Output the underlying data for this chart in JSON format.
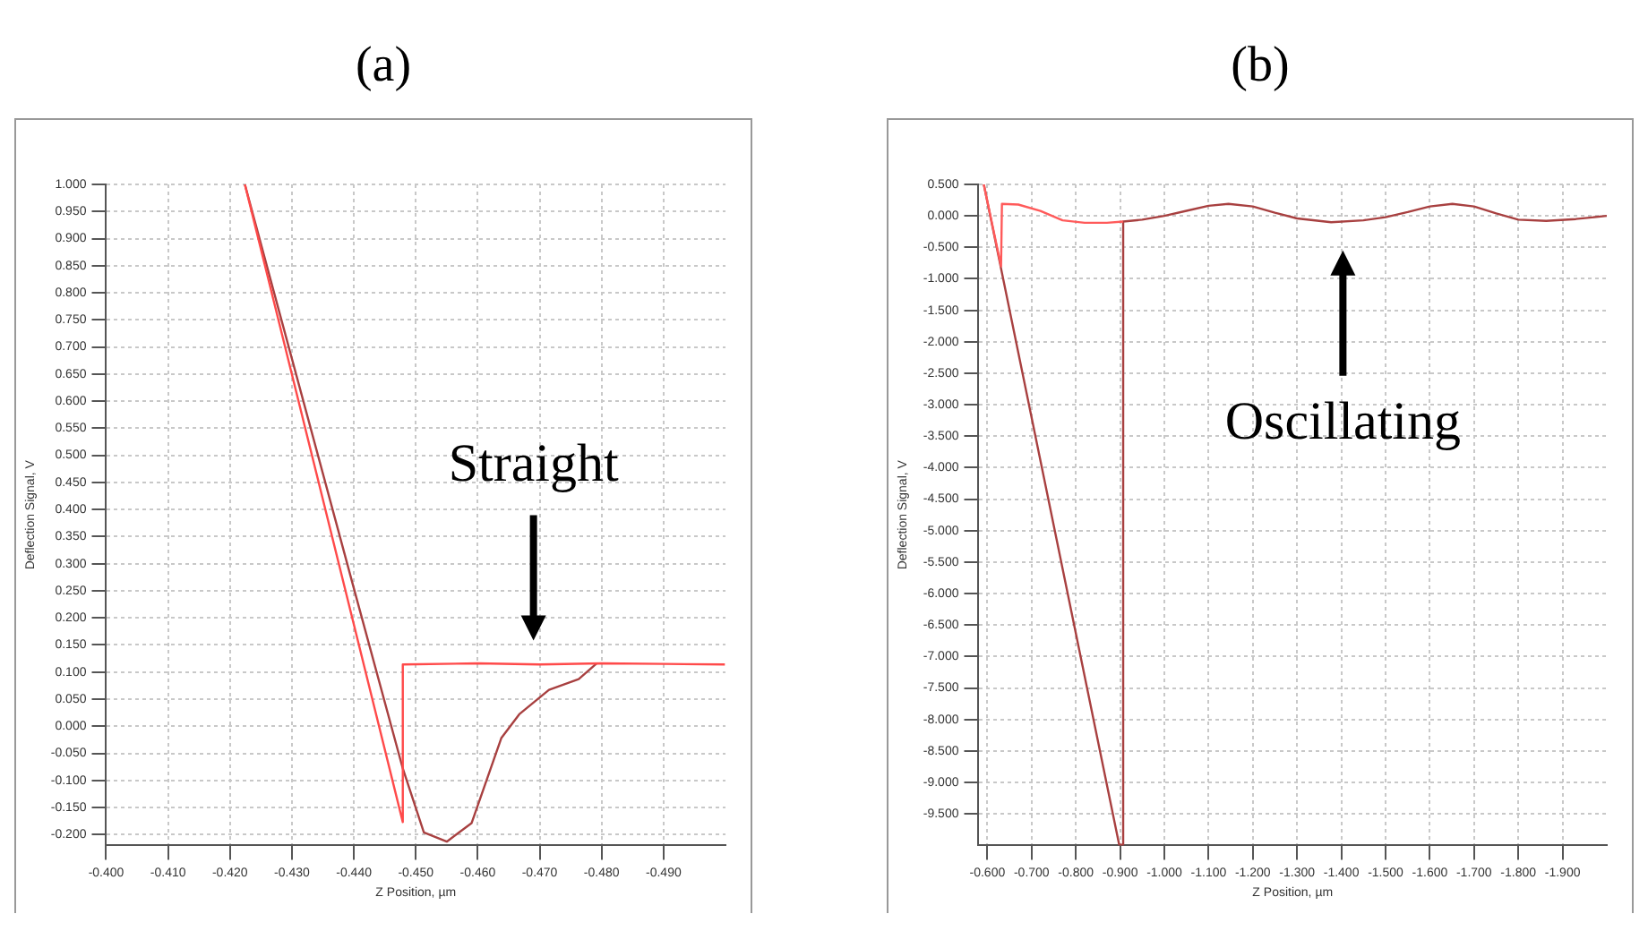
{
  "chart_data": [
    {
      "type": "line",
      "title": "(a)",
      "xlabel": "Z Position, µm",
      "ylabel": "Deflection Signal, V",
      "xlim": [
        -0.4,
        -0.5
      ],
      "xticks": [
        {
          "value": -0.4,
          "label": "-0.400"
        },
        {
          "value": -0.41,
          "label": "-0.410"
        },
        {
          "value": -0.42,
          "label": "-0.420"
        },
        {
          "value": -0.43,
          "label": "-0.430"
        },
        {
          "value": -0.44,
          "label": "-0.440"
        },
        {
          "value": -0.45,
          "label": "-0.450"
        },
        {
          "value": -0.46,
          "label": "-0.460"
        },
        {
          "value": -0.47,
          "label": "-0.470"
        },
        {
          "value": -0.48,
          "label": "-0.480"
        },
        {
          "value": -0.49,
          "label": "-0.490"
        }
      ],
      "ylim": [
        -0.22,
        1.0
      ],
      "yticks": [
        {
          "value": 1.0,
          "label": "1.000"
        },
        {
          "value": 0.95,
          "label": "0.950"
        },
        {
          "value": 0.9,
          "label": "0.900"
        },
        {
          "value": 0.85,
          "label": "0.850"
        },
        {
          "value": 0.8,
          "label": "0.800"
        },
        {
          "value": 0.75,
          "label": "0.750"
        },
        {
          "value": 0.7,
          "label": "0.700"
        },
        {
          "value": 0.65,
          "label": "0.650"
        },
        {
          "value": 0.6,
          "label": "0.600"
        },
        {
          "value": 0.55,
          "label": "0.550"
        },
        {
          "value": 0.5,
          "label": "0.500"
        },
        {
          "value": 0.45,
          "label": "0.450"
        },
        {
          "value": 0.4,
          "label": "0.400"
        },
        {
          "value": 0.35,
          "label": "0.350"
        },
        {
          "value": 0.3,
          "label": "0.300"
        },
        {
          "value": 0.25,
          "label": "0.250"
        },
        {
          "value": 0.2,
          "label": "0.200"
        },
        {
          "value": 0.15,
          "label": "0.150"
        },
        {
          "value": 0.1,
          "label": "0.100"
        },
        {
          "value": 0.05,
          "label": "0.050"
        },
        {
          "value": 0,
          "label": "0.000"
        },
        {
          "value": -0.05,
          "label": "-0.050"
        },
        {
          "value": -0.1,
          "label": "-0.100"
        },
        {
          "value": -0.15,
          "label": "-0.150"
        },
        {
          "value": -0.2,
          "label": "-0.200"
        }
      ],
      "grid": true,
      "series": [
        {
          "color": "#ff4a4a",
          "x": [
            -0.4224,
            -0.4479,
            -0.4479,
            -0.46,
            -0.47,
            -0.48,
            -0.49,
            -0.4999
          ],
          "values": [
            1.0,
            -0.177,
            0.114,
            0.116,
            0.114,
            0.116,
            0.115,
            0.114
          ]
        },
        {
          "color": "#a84040",
          "x": [
            -0.4224,
            -0.4402,
            -0.4479,
            -0.4513,
            -0.455,
            -0.459,
            -0.4638,
            -0.4667,
            -0.4715,
            -0.4763,
            -0.4782,
            -0.4792
          ],
          "values": [
            1.0,
            0.246,
            -0.078,
            -0.196,
            -0.213,
            -0.179,
            -0.022,
            0.022,
            0.067,
            0.087,
            0.106,
            0.116
          ]
        }
      ],
      "annotations": [
        "Straight"
      ]
    },
    {
      "type": "line",
      "title": "(b)",
      "xlabel": "Z Position, µm",
      "ylabel": "Deflection Signal, V",
      "xlim": [
        -0.58,
        -2.0
      ],
      "xticks": [
        {
          "value": -0.6,
          "label": "-0.600"
        },
        {
          "value": -0.7,
          "label": "-0.700"
        },
        {
          "value": -0.8,
          "label": "-0.800"
        },
        {
          "value": -0.9,
          "label": "-0.900"
        },
        {
          "value": -1.0,
          "label": "-1.000"
        },
        {
          "value": -1.1,
          "label": "-1.100"
        },
        {
          "value": -1.2,
          "label": "-1.200"
        },
        {
          "value": -1.3,
          "label": "-1.300"
        },
        {
          "value": -1.4,
          "label": "-1.400"
        },
        {
          "value": -1.5,
          "label": "-1.500"
        },
        {
          "value": -1.6,
          "label": "-1.600"
        },
        {
          "value": -1.7,
          "label": "-1.700"
        },
        {
          "value": -1.8,
          "label": "-1.800"
        },
        {
          "value": -1.9,
          "label": "-1.900"
        }
      ],
      "ylim": [
        -10.0,
        0.5
      ],
      "yticks": [
        {
          "value": 0.5,
          "label": "0.500"
        },
        {
          "value": 0,
          "label": "0.000"
        },
        {
          "value": -0.5,
          "label": "-0.500"
        },
        {
          "value": -1,
          "label": "-1.000"
        },
        {
          "value": -1.5,
          "label": "-1.500"
        },
        {
          "value": -2,
          "label": "-2.000"
        },
        {
          "value": -2.5,
          "label": "-2.500"
        },
        {
          "value": -3,
          "label": "-3.000"
        },
        {
          "value": -3.5,
          "label": "-3.500"
        },
        {
          "value": -4,
          "label": "-4.000"
        },
        {
          "value": -4.5,
          "label": "-4.500"
        },
        {
          "value": -5,
          "label": "-5.000"
        },
        {
          "value": -5.5,
          "label": "-5.500"
        },
        {
          "value": -6,
          "label": "-6.000"
        },
        {
          "value": -6.5,
          "label": "-6.500"
        },
        {
          "value": -7,
          "label": "-7.000"
        },
        {
          "value": -7.5,
          "label": "-7.500"
        },
        {
          "value": -8,
          "label": "-8.000"
        },
        {
          "value": -8.5,
          "label": "-8.500"
        },
        {
          "value": -9,
          "label": "-9.000"
        },
        {
          "value": -9.5,
          "label": "-9.500"
        }
      ],
      "grid": true,
      "series": [
        {
          "color": "#ff5a5a",
          "x": [
            -0.592,
            -0.631,
            -0.633,
            -0.67,
            -0.72,
            -0.77,
            -0.82,
            -0.87,
            -0.907
          ],
          "values": [
            0.5,
            -0.8,
            0.19,
            0.18,
            0.08,
            -0.07,
            -0.11,
            -0.11,
            -0.09
          ]
        },
        {
          "color": "#a84040",
          "x": [
            -0.592,
            -0.898,
            -0.907,
            -0.907,
            -0.95,
            -1.0,
            -1.05,
            -1.1,
            -1.145,
            -1.2,
            -1.25,
            -1.3,
            -1.377,
            -1.45,
            -1.5,
            -1.55,
            -1.6,
            -1.651,
            -1.7,
            -1.75,
            -1.8,
            -1.863,
            -1.93,
            -2.0
          ],
          "values": [
            0.5,
            -9.99,
            -9.99,
            -0.09,
            -0.06,
            0.0,
            0.08,
            0.16,
            0.19,
            0.15,
            0.05,
            -0.04,
            -0.1,
            -0.07,
            -0.02,
            0.06,
            0.15,
            0.19,
            0.15,
            0.04,
            -0.06,
            -0.08,
            -0.05,
            0.0
          ]
        }
      ],
      "annotations": [
        "Oscillating"
      ]
    }
  ]
}
